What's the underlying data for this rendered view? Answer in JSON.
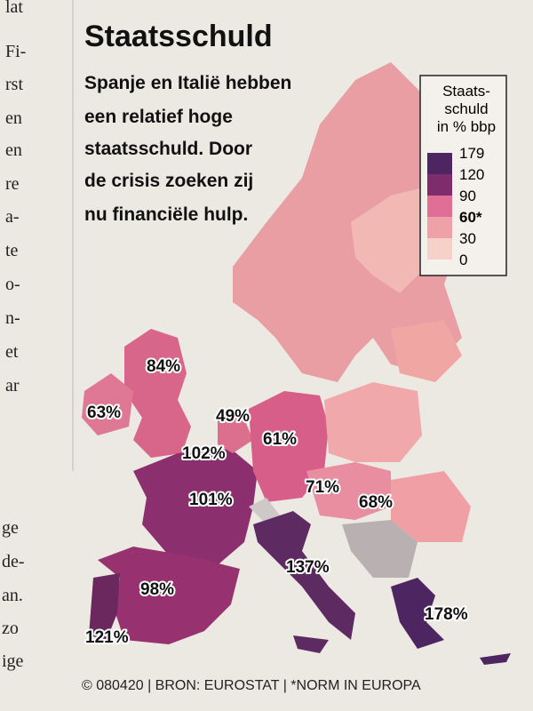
{
  "header": {
    "title": "Staatsschuld",
    "subtitle": [
      "Spanje en Italië hebben",
      "een relatief hoge",
      "staatsschuld. Door",
      "de crisis zoeken zij",
      "nu financiële hulp."
    ]
  },
  "legend": {
    "title": [
      "Staats-",
      "schuld",
      "in % bbp"
    ],
    "ticks": [
      "179",
      "120",
      "90",
      "60*",
      "30",
      "0"
    ]
  },
  "labels": [
    {
      "text": "84%"
    },
    {
      "text": "63%"
    },
    {
      "text": "49%"
    },
    {
      "text": "102%"
    },
    {
      "text": "61%"
    },
    {
      "text": "101%"
    },
    {
      "text": "71%"
    },
    {
      "text": "68%"
    },
    {
      "text": "137%"
    },
    {
      "text": "98%"
    },
    {
      "text": "178%"
    },
    {
      "text": "121%"
    }
  ],
  "source": "© 080420 | BRON: EUROSTAT | *NORM IN EUROPA",
  "column_text": [
    "lat",
    "Fi-",
    "rst",
    "en",
    "en",
    "re",
    "a-",
    "te",
    "o-",
    "n-",
    "et",
    "ar",
    "ge",
    "de-",
    "an.",
    "zo",
    "ige"
  ]
}
